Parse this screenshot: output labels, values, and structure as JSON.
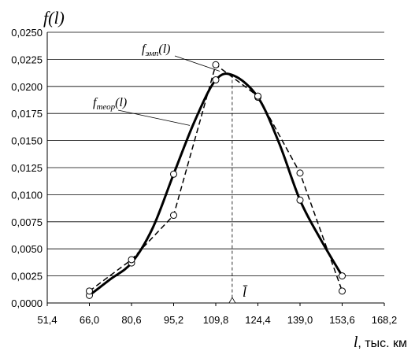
{
  "chart_data": {
    "type": "line",
    "ylabel": "f(l)",
    "xlabel": "l, тыс. км",
    "xlabel_var": "l",
    "xlabel_unit": ", тыс. км",
    "x_ticks": [
      "51,4",
      "66,0",
      "80,6",
      "95,2",
      "109,8",
      "124,4",
      "139,0",
      "153,6",
      "168,2"
    ],
    "x_range": [
      51.4,
      168.2
    ],
    "y_ticks": [
      "0,0000",
      "0,0025",
      "0,0050",
      "0,0075",
      "0,0100",
      "0,0125",
      "0,0150",
      "0,0175",
      "0,0200",
      "0,0225",
      "0,0250"
    ],
    "y_range": [
      0,
      0.025
    ],
    "grid": "horizontal",
    "mean_label": "l̄",
    "mean_x": 115.5,
    "series": [
      {
        "label_main": "f",
        "label_sub": "теор",
        "label_arg": "(l)",
        "style": "solid",
        "x": [
          66.0,
          73.3,
          80.6,
          87.9,
          95.2,
          102.5,
          109.8,
          116.0,
          124.4,
          131.7,
          139.0,
          146.3,
          153.6
        ],
        "y": [
          0.0007,
          0.0022,
          0.0037,
          0.0069,
          0.0119,
          0.0168,
          0.0206,
          0.021,
          0.019,
          0.0148,
          0.0095,
          0.0058,
          0.0025
        ]
      },
      {
        "label_main": "f",
        "label_sub": "эмп",
        "label_arg": "(l)",
        "style": "dashed",
        "x": [
          66.0,
          80.6,
          95.2,
          109.8,
          124.4,
          139.0,
          153.6
        ],
        "y": [
          0.0011,
          0.004,
          0.0081,
          0.022,
          0.0191,
          0.012,
          0.0011
        ]
      }
    ]
  }
}
